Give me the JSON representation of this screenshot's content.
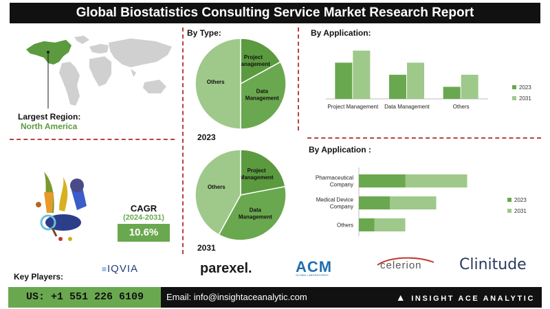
{
  "title": "Global Biostatistics Consulting Service Market Research Report",
  "colors": {
    "dark_green": "#5b9a3f",
    "mid_green": "#6aa84f",
    "light_green": "#9ec98a",
    "separator": "#b94040"
  },
  "left_panel": {
    "largest_region_label": "Largest Region:",
    "largest_region_value": "North America",
    "cagr_label": "CAGR",
    "cagr_period": "(2024-2031)",
    "cagr_value": "10.6%"
  },
  "key_players_label": "Key Players:",
  "logos": [
    "IQVIA",
    "parexel.",
    "ACM",
    "GLOBAL LABORATORIES",
    "celerion",
    "Clinitude"
  ],
  "footer": {
    "phone": "US: +1 551 226 6109",
    "email": "Email: info@insightaceanalytic.com",
    "brand": "INSIGHT ACE ANALYTIC"
  },
  "chart_data": [
    {
      "type": "pie",
      "title": "By Type:",
      "caption": "2023",
      "labels": [
        "Project Management",
        "Data Management",
        "Others"
      ],
      "values": [
        17,
        33,
        50
      ]
    },
    {
      "type": "pie",
      "caption": "2031",
      "labels": [
        "Project Management",
        "Data Management",
        "Others"
      ],
      "values": [
        22,
        36,
        42
      ]
    },
    {
      "type": "bar",
      "orientation": "vertical",
      "title": "By Application:",
      "categories": [
        "Project Management",
        "Data Management",
        "Others"
      ],
      "series": [
        {
          "name": "2023",
          "values": [
            45,
            30,
            15
          ]
        },
        {
          "name": "2031",
          "values": [
            60,
            45,
            30
          ]
        }
      ],
      "ylim": [
        0,
        70
      ],
      "legend": "right"
    },
    {
      "type": "bar",
      "orientation": "horizontal-stacked",
      "title": "By Application :",
      "categories": [
        "Pharmaceutical Company",
        "Medical Device Company",
        "Others"
      ],
      "series": [
        {
          "name": "2023",
          "values": [
            30,
            20,
            10
          ]
        },
        {
          "name": "2031",
          "values": [
            40,
            30,
            20
          ]
        }
      ],
      "xlim": [
        0,
        80
      ],
      "legend": "right"
    }
  ]
}
